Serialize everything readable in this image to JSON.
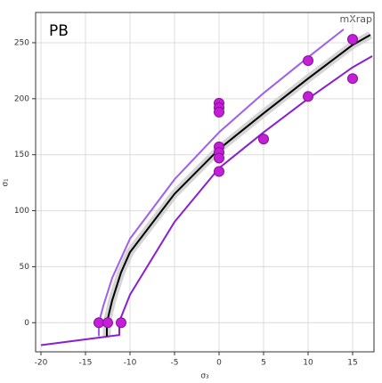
{
  "chart_data": {
    "type": "scatter",
    "title": "PB",
    "annotations": [
      "mXrap"
    ],
    "x_label": "σ₃",
    "y_label": "σ₁",
    "xlim": [
      -20.6,
      17.4
    ],
    "ylim": [
      -26,
      277
    ],
    "xticks": [
      -20,
      -15,
      -10,
      -5,
      0,
      5,
      10,
      15
    ],
    "yticks": [
      0,
      50,
      100,
      150,
      200,
      250
    ],
    "series": [
      {
        "color": "#c21fd6",
        "x": [
          -13.5,
          -12.5,
          -11,
          0,
          0,
          0,
          0,
          0,
          0,
          0,
          5,
          10,
          10,
          15,
          15
        ],
        "values": [
          0,
          0,
          0,
          196,
          192,
          188,
          157,
          152,
          147,
          135,
          164,
          234,
          202,
          253,
          218
        ]
      }
    ],
    "lines": [
      {
        "color": "#d4d4d4",
        "x": [
          -12.6,
          -12.6,
          -12,
          -11,
          -10,
          -5,
          0,
          5,
          10,
          15,
          17
        ],
        "values": [
          -12,
          0,
          20,
          45,
          63,
          115,
          155,
          187,
          218,
          248,
          257
        ]
      },
      {
        "color": "#a05ef0",
        "x": [
          -13.5,
          -13.5,
          -13,
          -12,
          -10,
          -5,
          0,
          5,
          10,
          14
        ],
        "values": [
          -12,
          0,
          15,
          40,
          75,
          128,
          170,
          205,
          237,
          262
        ]
      },
      {
        "color": "#8a1fd0",
        "x": [
          -20,
          -11.2,
          -11.2,
          -11,
          -10,
          -5,
          0,
          5,
          10,
          15,
          17.2
        ],
        "values": [
          -20,
          -11,
          0,
          5,
          25,
          90,
          138,
          170,
          200,
          228,
          238
        ]
      },
      {
        "color": "#000000",
        "x": [
          -12.6,
          -12.6,
          -12,
          -11,
          -10,
          -5,
          0,
          5,
          10,
          15,
          17
        ],
        "values": [
          -12,
          0,
          20,
          45,
          63,
          115,
          155,
          187,
          218,
          248,
          257
        ]
      }
    ]
  }
}
